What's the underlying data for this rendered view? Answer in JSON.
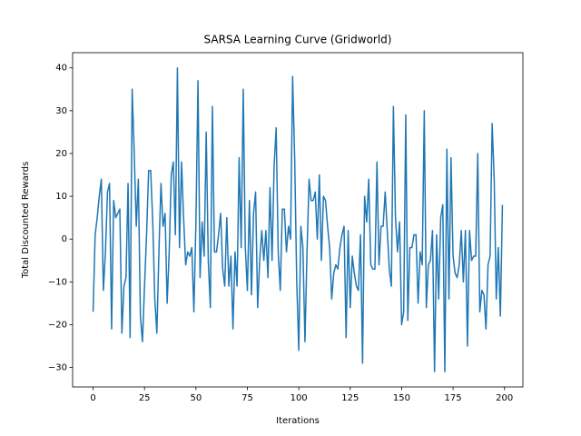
{
  "chart_data": {
    "type": "line",
    "title": "SARSA Learning Curve (Gridworld)",
    "x_label": "Iterations",
    "y_label": "Total Discounted Rewards",
    "x": [
      0,
      1,
      2,
      3,
      4,
      5,
      6,
      7,
      8,
      9,
      10,
      11,
      12,
      13,
      14,
      15,
      16,
      17,
      18,
      19,
      20,
      21,
      22,
      23,
      24,
      25,
      26,
      27,
      28,
      29,
      30,
      31,
      32,
      33,
      34,
      35,
      36,
      37,
      38,
      39,
      40,
      41,
      42,
      43,
      44,
      45,
      46,
      47,
      48,
      49,
      50,
      51,
      52,
      53,
      54,
      55,
      56,
      57,
      58,
      59,
      60,
      61,
      62,
      63,
      64,
      65,
      66,
      67,
      68,
      69,
      70,
      71,
      72,
      73,
      74,
      75,
      76,
      77,
      78,
      79,
      80,
      81,
      82,
      83,
      84,
      85,
      86,
      87,
      88,
      89,
      90,
      91,
      92,
      93,
      94,
      95,
      96,
      97,
      98,
      99,
      100,
      101,
      102,
      103,
      104,
      105,
      106,
      107,
      108,
      109,
      110,
      111,
      112,
      113,
      114,
      115,
      116,
      117,
      118,
      119,
      120,
      121,
      122,
      123,
      124,
      125,
      126,
      127,
      128,
      129,
      130,
      131,
      132,
      133,
      134,
      135,
      136,
      137,
      138,
      139,
      140,
      141,
      142,
      143,
      144,
      145,
      146,
      147,
      148,
      149,
      150,
      151,
      152,
      153,
      154,
      155,
      156,
      157,
      158,
      159,
      160,
      161,
      162,
      163,
      164,
      165,
      166,
      167,
      168,
      169,
      170,
      171,
      172,
      173,
      174,
      175,
      176,
      177,
      178,
      179,
      180,
      181,
      182,
      183,
      184,
      185,
      186,
      187,
      188,
      189,
      190,
      191,
      192,
      193,
      194,
      195,
      196,
      197,
      198,
      199
    ],
    "series": [
      {
        "color": "#1f77b4",
        "values": [
          -17,
          1,
          5,
          10,
          14,
          -12,
          -3,
          11,
          13,
          -21,
          9,
          5,
          6,
          7,
          -22,
          -11,
          -9,
          13,
          -23,
          35,
          20,
          3,
          14,
          -18,
          -24,
          -11,
          1,
          16,
          16,
          4,
          -14,
          -22,
          -3,
          13,
          3,
          6,
          -15,
          -3,
          15,
          18,
          1,
          40,
          -2,
          18,
          5,
          -6,
          -3,
          -4,
          -2,
          -17,
          4,
          37,
          -9,
          4,
          -4,
          25,
          -5,
          -16,
          31,
          -3,
          -3,
          1,
          6,
          -7,
          -11,
          5,
          -11,
          -4,
          -21,
          -3,
          -11,
          19,
          -2,
          35,
          -2,
          -12,
          9,
          -13,
          6,
          11,
          -16,
          -5,
          2,
          -5,
          2,
          -9,
          12,
          -5,
          17,
          26,
          -3,
          -12,
          7,
          7,
          -3,
          3,
          0,
          38,
          19,
          -10,
          -26,
          3,
          -2,
          -24,
          -3,
          14,
          9,
          9,
          11,
          0,
          15,
          -5,
          10,
          9,
          3,
          -2,
          -14,
          -8,
          -6,
          -7,
          -2,
          1,
          3,
          -23,
          2,
          -16,
          -4,
          -8,
          -11,
          -12,
          1,
          -29,
          10,
          4,
          14,
          -6,
          -7,
          -7,
          18,
          -6,
          3,
          3,
          11,
          2,
          -7,
          -11,
          31,
          5,
          -3,
          4,
          -20,
          -17,
          29,
          -19,
          -2,
          -2,
          1,
          1,
          -15,
          -3,
          -6,
          30,
          -16,
          -6,
          -5,
          2,
          -31,
          1,
          -14,
          5,
          8,
          -31,
          21,
          -14,
          19,
          -4,
          -8,
          -9,
          -6,
          2,
          -10,
          2,
          -25,
          2,
          -5,
          -4,
          -4,
          20,
          -17,
          -12,
          -13,
          -21,
          -6,
          -4,
          27,
          14,
          -14,
          -2,
          -18,
          8
        ]
      }
    ],
    "xlim": [
      -9.95,
      208.95
    ],
    "ylim": [
      -34.55,
      43.55
    ],
    "xticks": [
      0,
      25,
      50,
      75,
      100,
      125,
      150,
      175,
      200
    ],
    "yticks": [
      {
        "value": -30,
        "label": "−30"
      },
      {
        "value": -20,
        "label": "−20"
      },
      {
        "value": -10,
        "label": "−10"
      },
      0,
      10,
      20,
      30,
      40
    ],
    "grid": false
  }
}
